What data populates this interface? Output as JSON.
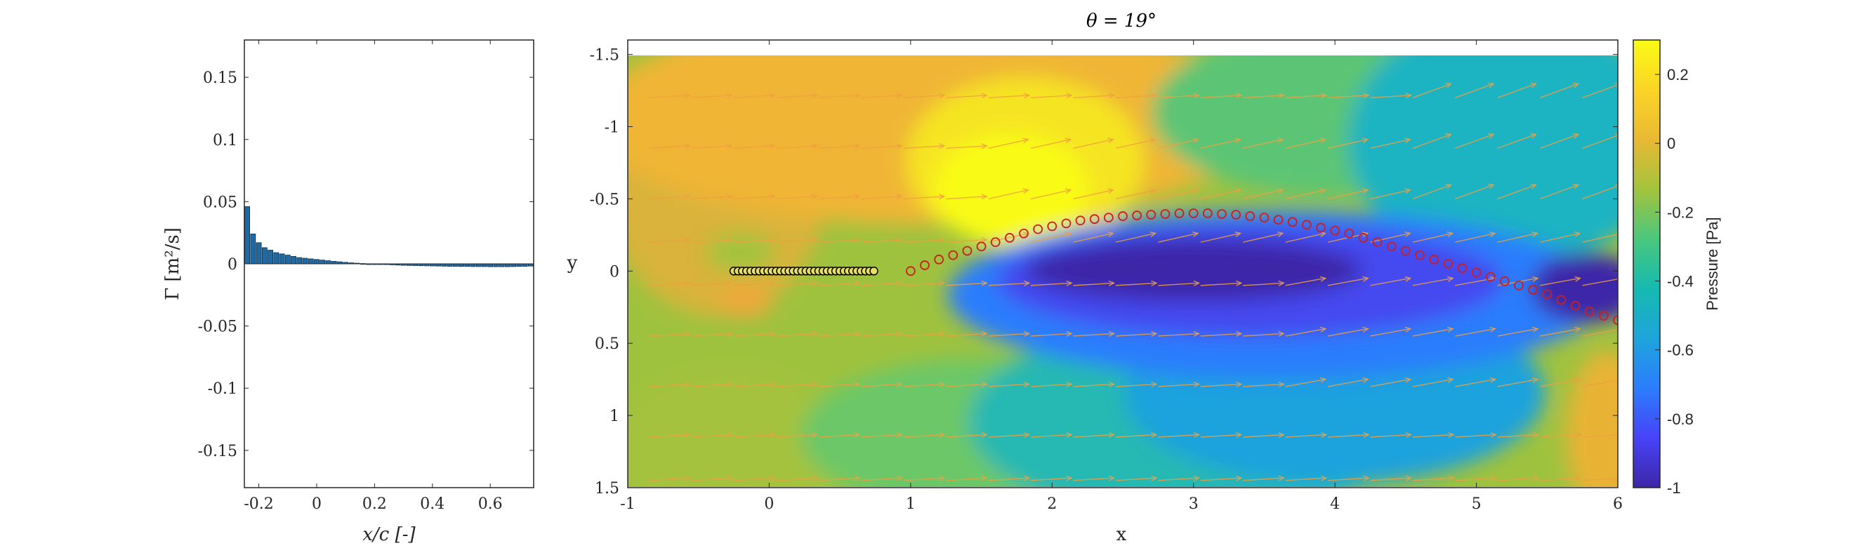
{
  "left_chart": {
    "type": "bar",
    "xlabel": "x/c [-]",
    "ylabel": "Γ [m²/s]",
    "xlim": [
      -0.25,
      0.75
    ],
    "ylim": [
      -0.18,
      0.18
    ],
    "xticks": [
      -0.2,
      0,
      0.2,
      0.4,
      0.6
    ],
    "xtick_labels": [
      "-0.2",
      "0",
      "0.2",
      "0.4",
      "0.6"
    ],
    "yticks": [
      -0.15,
      -0.1,
      -0.05,
      0,
      0.05,
      0.1,
      0.15
    ],
    "ytick_labels": [
      "-0.15",
      "-0.1",
      "-0.05",
      "0",
      "0.05",
      "0.1",
      "0.15"
    ],
    "bar_color": "#1f6aa5",
    "series": [
      {
        "x": [
          -0.24,
          -0.22,
          -0.2,
          -0.18,
          -0.16,
          -0.14,
          -0.12,
          -0.1,
          -0.08,
          -0.06,
          -0.04,
          -0.02,
          0.0,
          0.02,
          0.04,
          0.06,
          0.08,
          0.1,
          0.12,
          0.14,
          0.16,
          0.18,
          0.2,
          0.22,
          0.24,
          0.26,
          0.28,
          0.3,
          0.32,
          0.34,
          0.36,
          0.38,
          0.4,
          0.42,
          0.44,
          0.46,
          0.48,
          0.5,
          0.52,
          0.54,
          0.56,
          0.58,
          0.6,
          0.62,
          0.64,
          0.66,
          0.68,
          0.7,
          0.72,
          0.74
        ],
        "values": [
          0.046,
          0.024,
          0.017,
          0.013,
          0.011,
          0.009,
          0.008,
          0.007,
          0.006,
          0.005,
          0.0045,
          0.004,
          0.0035,
          0.003,
          0.0025,
          0.002,
          0.0016,
          0.0012,
          0.0008,
          0.0005,
          0.0002,
          0.0,
          -0.0002,
          -0.0004,
          -0.0006,
          -0.0008,
          -0.001,
          -0.0012,
          -0.0013,
          -0.0014,
          -0.0015,
          -0.0016,
          -0.0017,
          -0.0018,
          -0.0019,
          -0.002,
          -0.002,
          -0.0021,
          -0.0021,
          -0.0022,
          -0.0022,
          -0.0022,
          -0.0023,
          -0.0023,
          -0.0023,
          -0.0023,
          -0.0022,
          -0.0021,
          -0.002,
          -0.0018
        ]
      }
    ]
  },
  "right_chart": {
    "type": "heatmap",
    "title": "θ = 19°",
    "xlabel": "x",
    "ylabel": "y",
    "xlim": [
      -1,
      6
    ],
    "ylim": [
      -1.6,
      1.5
    ],
    "y_reversed": true,
    "xticks": [
      -1,
      0,
      1,
      2,
      3,
      4,
      5,
      6
    ],
    "xtick_labels": [
      "-1",
      "0",
      "1",
      "2",
      "3",
      "4",
      "5",
      "6"
    ],
    "yticks": [
      -1.5,
      -1,
      -0.5,
      0,
      0.5,
      1,
      1.5
    ],
    "ytick_labels": [
      "-1.5",
      "-1",
      "-0.5",
      "0",
      "0.5",
      "1",
      "1.5"
    ],
    "colorbar": {
      "label": "Pressure [Pa]",
      "range": [
        -1,
        0.3
      ],
      "ticks": [
        -1,
        -0.8,
        -0.6,
        -0.4,
        -0.2,
        0,
        0.2
      ],
      "tick_labels": [
        "-1",
        "-0.8",
        "-0.6",
        "-0.4",
        "-0.2",
        "0",
        "0.2"
      ],
      "colormap": [
        "#3e26a8",
        "#4743f8",
        "#2c7dfd",
        "#1ea4dc",
        "#16bab0",
        "#4ac77d",
        "#a3c33d",
        "#e9b934",
        "#fbd426",
        "#f9fb15"
      ]
    },
    "plate": {
      "x": [
        -0.25,
        -0.22,
        -0.19,
        -0.16,
        -0.13,
        -0.1,
        -0.07,
        -0.04,
        -0.01,
        0.02,
        0.05,
        0.08,
        0.11,
        0.14,
        0.17,
        0.2,
        0.23,
        0.26,
        0.29,
        0.32,
        0.35,
        0.38,
        0.41,
        0.44,
        0.47,
        0.5,
        0.53,
        0.56,
        0.59,
        0.62,
        0.65,
        0.68,
        0.71,
        0.74
      ],
      "y": 0,
      "marker_color": "#000000",
      "marker_fill": "#e8e060"
    },
    "wake": {
      "marker_color": "#c82020",
      "x": [
        1.0,
        1.1,
        1.2,
        1.3,
        1.4,
        1.5,
        1.6,
        1.7,
        1.8,
        1.9,
        2.0,
        2.1,
        2.2,
        2.3,
        2.4,
        2.5,
        2.6,
        2.7,
        2.8,
        2.9,
        3.0,
        3.1,
        3.2,
        3.3,
        3.4,
        3.5,
        3.6,
        3.7,
        3.8,
        3.9,
        4.0,
        4.1,
        4.2,
        4.3,
        4.4,
        4.5,
        4.6,
        4.7,
        4.8,
        4.9,
        5.0,
        5.1,
        5.2,
        5.3,
        5.4,
        5.5,
        5.6,
        5.7,
        5.8,
        5.9,
        6.0
      ],
      "y": [
        0.0,
        -0.04,
        -0.08,
        -0.11,
        -0.14,
        -0.17,
        -0.2,
        -0.23,
        -0.26,
        -0.29,
        -0.31,
        -0.33,
        -0.35,
        -0.36,
        -0.37,
        -0.38,
        -0.385,
        -0.39,
        -0.395,
        -0.4,
        -0.4,
        -0.4,
        -0.395,
        -0.39,
        -0.38,
        -0.37,
        -0.355,
        -0.34,
        -0.32,
        -0.3,
        -0.28,
        -0.26,
        -0.23,
        -0.2,
        -0.17,
        -0.14,
        -0.11,
        -0.08,
        -0.05,
        -0.02,
        0.01,
        0.04,
        0.07,
        0.1,
        0.13,
        0.16,
        0.2,
        0.24,
        0.28,
        0.31,
        0.34
      ]
    },
    "quiver": {
      "color": "#f0a040",
      "rows_y": [
        -1.53,
        -1.2,
        -0.85,
        -0.5,
        -0.2,
        0.1,
        0.45,
        0.8,
        1.15,
        1.45
      ],
      "cols_x": [
        -0.85,
        -0.55,
        -0.25,
        0.05,
        0.35,
        0.65,
        0.95,
        1.25,
        1.55,
        1.85,
        2.15,
        2.45,
        2.75,
        3.05,
        3.35,
        3.65,
        3.95,
        4.25,
        4.55,
        4.85,
        5.15,
        5.45,
        5.75
      ]
    }
  }
}
